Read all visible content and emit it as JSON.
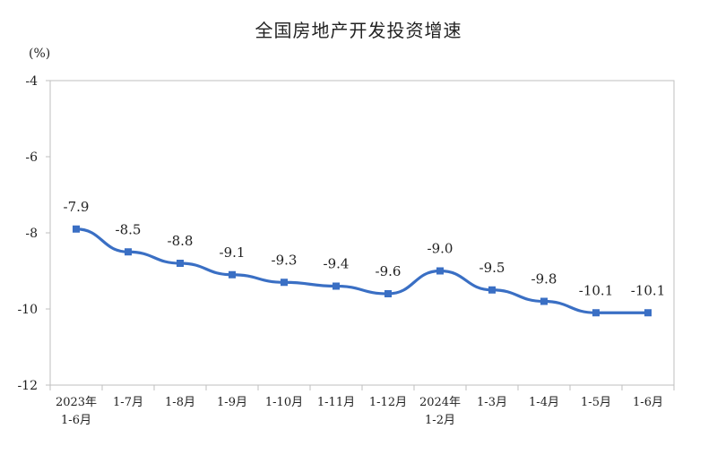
{
  "chart_data": {
    "type": "line",
    "title": "全国房地产开发投资增速",
    "ylabel": "(%)",
    "ylim": [
      -12,
      -4
    ],
    "yticks": [
      -4,
      -6,
      -8,
      -10,
      -12
    ],
    "categories": [
      {
        "line1": "2023年",
        "line2": "1-6月"
      },
      {
        "line1": "1-7月",
        "line2": ""
      },
      {
        "line1": "1-8月",
        "line2": ""
      },
      {
        "line1": "1-9月",
        "line2": ""
      },
      {
        "line1": "1-10月",
        "line2": ""
      },
      {
        "line1": "1-11月",
        "line2": ""
      },
      {
        "line1": "1-12月",
        "line2": ""
      },
      {
        "line1": "2024年",
        "line2": "1-2月"
      },
      {
        "line1": "1-3月",
        "line2": ""
      },
      {
        "line1": "1-4月",
        "line2": ""
      },
      {
        "line1": "1-5月",
        "line2": ""
      },
      {
        "line1": "1-6月",
        "line2": ""
      }
    ],
    "values": [
      -7.9,
      -8.5,
      -8.8,
      -9.1,
      -9.3,
      -9.4,
      -9.6,
      -9.0,
      -9.5,
      -9.8,
      -10.1,
      -10.1
    ],
    "data_labels": [
      "-7.9",
      "-8.5",
      "-8.8",
      "-9.1",
      "-9.3",
      "-9.4",
      "-9.6",
      "-9.0",
      "-9.5",
      "-9.8",
      "-10.1",
      "-10.1"
    ],
    "grid": false,
    "legend": "none",
    "line_color": "#3a6fc4"
  }
}
